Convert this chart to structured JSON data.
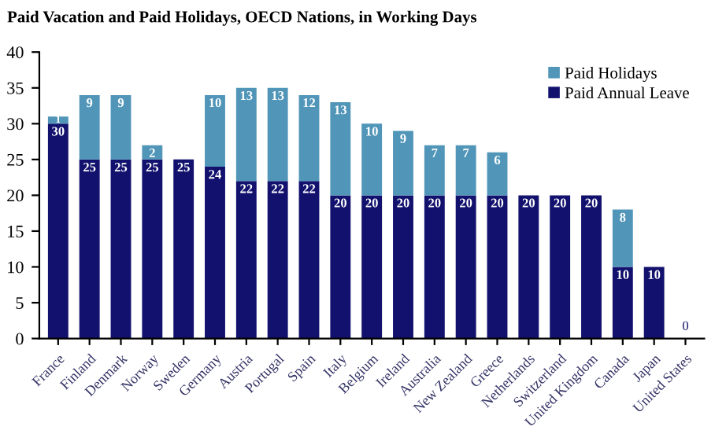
{
  "chart_data": {
    "type": "bar",
    "stacked": true,
    "title": "Paid Vacation and Paid Holidays, OECD Nations, in Working Days",
    "categories": [
      "France",
      "Finland",
      "Denmark",
      "Norway",
      "Sweden",
      "Germany",
      "Austria",
      "Portugal",
      "Spain",
      "Italy",
      "Belgium",
      "Ireland",
      "Australia",
      "New Zealand",
      "Greece",
      "Netherlands",
      "Switzerland",
      "United Kingdom",
      "Canada",
      "Japan",
      "United States"
    ],
    "series": [
      {
        "name": "Paid Annual Leave",
        "color": "#12126e",
        "values": [
          30,
          25,
          25,
          25,
          25,
          24,
          22,
          22,
          22,
          20,
          20,
          20,
          20,
          20,
          20,
          20,
          20,
          20,
          10,
          10,
          0
        ],
        "value_labels": [
          "30",
          "25",
          "25",
          "25",
          "25",
          "24",
          "22",
          "22",
          "22",
          "20",
          "20",
          "20",
          "20",
          "20",
          "20",
          "20",
          "20",
          "20",
          "10",
          "10",
          "0"
        ]
      },
      {
        "name": "Paid Holidays",
        "color": "#5196b8",
        "values": [
          1,
          9,
          9,
          2,
          0,
          10,
          13,
          13,
          12,
          13,
          10,
          9,
          7,
          7,
          6,
          0,
          0,
          0,
          8,
          0,
          0
        ],
        "value_labels": [
          "1",
          "9",
          "9",
          "2",
          null,
          "10",
          "13",
          "13",
          "12",
          "13",
          "10",
          "9",
          "7",
          "7",
          "6",
          null,
          null,
          null,
          "8",
          null,
          null
        ]
      }
    ],
    "ylim": [
      0,
      40
    ],
    "yticks": [
      0,
      5,
      10,
      15,
      20,
      25,
      30,
      35,
      40
    ],
    "grid": false,
    "legend": "top right"
  }
}
